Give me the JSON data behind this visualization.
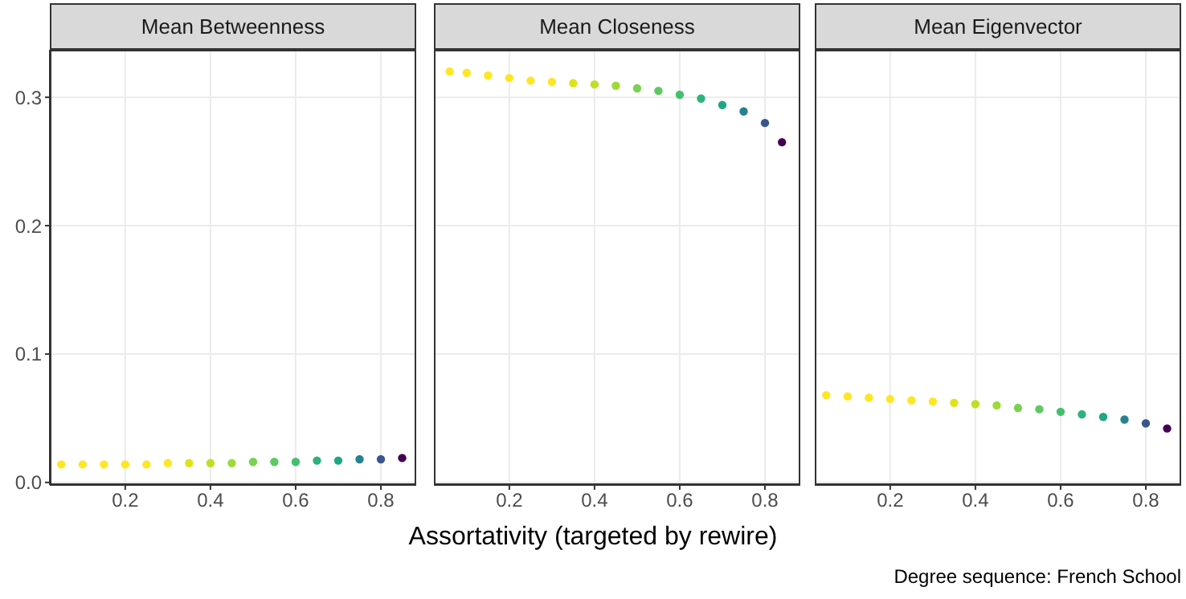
{
  "chart_data": [
    {
      "type": "scatter",
      "title": "Mean Betweenness",
      "marker": "circle",
      "grid": true,
      "x": [
        0.05,
        0.1,
        0.15,
        0.2,
        0.25,
        0.3,
        0.35,
        0.4,
        0.45,
        0.5,
        0.55,
        0.6,
        0.65,
        0.7,
        0.75,
        0.8,
        0.85
      ],
      "values": [
        0.014,
        0.014,
        0.014,
        0.014,
        0.014,
        0.015,
        0.015,
        0.015,
        0.015,
        0.016,
        0.016,
        0.016,
        0.017,
        0.017,
        0.018,
        0.018,
        0.019
      ],
      "colors": [
        "#fde725",
        "#fde725",
        "#fde725",
        "#fde725",
        "#fde725",
        "#fde725",
        "#dde318",
        "#bddf26",
        "#9fda3a",
        "#7ad151",
        "#5ec962",
        "#44bf70",
        "#2db27d",
        "#21a685",
        "#26828e",
        "#39568c",
        "#440154"
      ],
      "xlim": [
        0.023,
        0.883
      ],
      "xticks": [
        0.2,
        0.4,
        0.6,
        0.8
      ],
      "ylim": [
        -0.002,
        0.337
      ],
      "yticks": [
        {
          "value": 0,
          "label": "0.0"
        },
        0.1,
        0.2,
        0.3
      ]
    },
    {
      "type": "scatter",
      "title": "Mean Closeness",
      "xlabel": "Assortativity (targeted by rewire)",
      "marker": "circle",
      "grid": true,
      "tick_labels": "x",
      "x": [
        0.06,
        0.1,
        0.15,
        0.2,
        0.25,
        0.3,
        0.35,
        0.4,
        0.45,
        0.5,
        0.55,
        0.6,
        0.65,
        0.7,
        0.75,
        0.8,
        0.84
      ],
      "values": [
        0.32,
        0.319,
        0.317,
        0.315,
        0.313,
        0.312,
        0.311,
        0.31,
        0.309,
        0.307,
        0.305,
        0.302,
        0.299,
        0.294,
        0.289,
        0.28,
        0.265
      ],
      "colors": [
        "#fde725",
        "#fde725",
        "#fde725",
        "#fde725",
        "#fde725",
        "#fde725",
        "#dde318",
        "#bddf26",
        "#9fda3a",
        "#7ad151",
        "#5ec962",
        "#44bf70",
        "#2db27d",
        "#21a685",
        "#26828e",
        "#39568c",
        "#440154"
      ],
      "xlim": [
        0.023,
        0.883
      ],
      "xticks": [
        0.2,
        0.4,
        0.6,
        0.8
      ],
      "ylim": [
        -0.002,
        0.337
      ],
      "yticks": [
        0,
        0.1,
        0.2,
        0.3
      ]
    },
    {
      "type": "scatter",
      "title": "Mean Eigenvector",
      "marker": "circle",
      "grid": true,
      "tick_labels": "x",
      "annotations": [
        "Degree sequence:  French School"
      ],
      "x": [
        0.05,
        0.1,
        0.15,
        0.2,
        0.25,
        0.3,
        0.35,
        0.4,
        0.45,
        0.5,
        0.55,
        0.6,
        0.65,
        0.7,
        0.75,
        0.8,
        0.85
      ],
      "values": [
        0.068,
        0.067,
        0.066,
        0.065,
        0.064,
        0.063,
        0.062,
        0.061,
        0.06,
        0.058,
        0.057,
        0.055,
        0.053,
        0.051,
        0.049,
        0.046,
        0.042
      ],
      "colors": [
        "#fde725",
        "#fde725",
        "#fde725",
        "#fde725",
        "#fde725",
        "#fde725",
        "#dde318",
        "#bddf26",
        "#9fda3a",
        "#7ad151",
        "#5ec962",
        "#44bf70",
        "#2db27d",
        "#21a685",
        "#26828e",
        "#39568c",
        "#440154"
      ],
      "xlim": [
        0.023,
        0.883
      ],
      "xticks": [
        0.2,
        0.4,
        0.6,
        0.8
      ],
      "ylim": [
        -0.002,
        0.337
      ],
      "yticks": [
        0,
        0.1,
        0.2,
        0.3
      ]
    }
  ]
}
